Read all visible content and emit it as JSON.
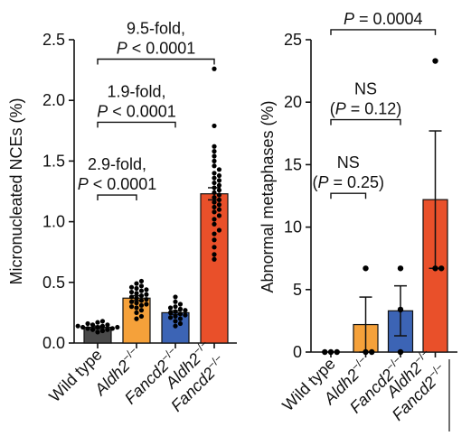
{
  "chart_data": [
    {
      "type": "bar",
      "title": "",
      "xlabel": "",
      "ylabel": "Micronucleated NCEs (%)",
      "ylim": [
        0,
        2.5
      ],
      "yticks": [
        "0.0",
        "0.5",
        "1.0",
        "1.5",
        "2.0",
        "2.5"
      ],
      "ytick_values": [
        0,
        0.5,
        1,
        1.5,
        2,
        2.5
      ],
      "categories": [
        {
          "line1": "Wild type",
          "line2": "",
          "italic": false
        },
        {
          "line1": "Aldh2",
          "sup": "−/−",
          "line2": "",
          "italic": true
        },
        {
          "line1": "Fancd2",
          "sup": "−/−",
          "line2": "",
          "italic": true
        },
        {
          "line1": "Aldh2",
          "sup": "−/−",
          "line2": "Fancd2",
          "sup2": "−/−",
          "italic": true
        }
      ],
      "bar_colors": [
        "#4a4a4a",
        "#f5a13a",
        "#3c64b5",
        "#e9502a"
      ],
      "series": [
        {
          "values": [
            0.13,
            0.37,
            0.25,
            1.23
          ],
          "errors": [
            0.01,
            0.02,
            0.015,
            0.05
          ],
          "points": [
            [
              0.09,
              0.1,
              0.11,
              0.11,
              0.12,
              0.12,
              0.13,
              0.13,
              0.13,
              0.14,
              0.14,
              0.15,
              0.15,
              0.16,
              0.17,
              0.18
            ],
            [
              0.2,
              0.22,
              0.25,
              0.27,
              0.29,
              0.3,
              0.31,
              0.32,
              0.33,
              0.34,
              0.35,
              0.36,
              0.37,
              0.38,
              0.39,
              0.4,
              0.41,
              0.42,
              0.43,
              0.44,
              0.45,
              0.46,
              0.47,
              0.49,
              0.51
            ],
            [
              0.14,
              0.16,
              0.18,
              0.2,
              0.21,
              0.22,
              0.23,
              0.24,
              0.25,
              0.26,
              0.27,
              0.28,
              0.29,
              0.3,
              0.32,
              0.34,
              0.38
            ],
            [
              0.69,
              0.73,
              0.79,
              0.85,
              0.9,
              0.93,
              0.98,
              1.02,
              1.05,
              1.08,
              1.1,
              1.12,
              1.14,
              1.16,
              1.18,
              1.2,
              1.22,
              1.24,
              1.26,
              1.28,
              1.3,
              1.32,
              1.34,
              1.36,
              1.38,
              1.4,
              1.43,
              1.46,
              1.5,
              1.54,
              1.58,
              1.62,
              1.79,
              2.26
            ]
          ]
        }
      ],
      "annotations": [
        {
          "from": 1,
          "to": 2,
          "line1": "2.9-fold,",
          "line2": "P < 0.0001",
          "y": 1.22
        },
        {
          "from": 1,
          "to": 3,
          "line1": "1.9-fold,",
          "line2": "P < 0.0001",
          "y": 1.82
        },
        {
          "from": 1,
          "to": 4,
          "line1": "9.5-fold,",
          "line2": "P < 0.0001",
          "y": 2.34
        }
      ]
    },
    {
      "type": "bar",
      "title": "",
      "xlabel": "",
      "ylabel": "Abnormal metaphases (%)",
      "ylim": [
        0,
        25
      ],
      "yticks": [
        "0",
        "5",
        "10",
        "15",
        "20",
        "25"
      ],
      "ytick_values": [
        0,
        5,
        10,
        15,
        20,
        25
      ],
      "categories": [
        {
          "line1": "Wild type",
          "line2": "",
          "italic": false
        },
        {
          "line1": "Aldh2",
          "sup": "−/−",
          "line2": "",
          "italic": true
        },
        {
          "line1": "Fancd2",
          "sup": "−/−",
          "line2": "",
          "italic": true
        },
        {
          "line1": "Aldh2",
          "sup": "−/−",
          "line2": "Fancd2",
          "sup2": "−/−",
          "italic": true
        }
      ],
      "bar_colors": [
        "#4a4a4a",
        "#f5a13a",
        "#3c64b5",
        "#e9502a"
      ],
      "series": [
        {
          "values": [
            0,
            2.2,
            3.3,
            12.2
          ],
          "errors": [
            0,
            2.2,
            2.0,
            5.5
          ],
          "points": [
            [
              0,
              0,
              0
            ],
            [
              0,
              0,
              6.7
            ],
            [
              0,
              3.4,
              6.7
            ],
            [
              6.7,
              6.7,
              23.3
            ]
          ]
        }
      ],
      "annotations": [
        {
          "from": 1,
          "to": 2,
          "line1": "NS",
          "line2": "(P = 0.25)",
          "y": 12.7
        },
        {
          "from": 1,
          "to": 3,
          "line1": "NS",
          "line2": "(P = 0.12)",
          "y": 18.6
        },
        {
          "from": 1,
          "to": 4,
          "line1": "P = 0.0004",
          "line2": "",
          "y": 25.8
        }
      ]
    }
  ]
}
